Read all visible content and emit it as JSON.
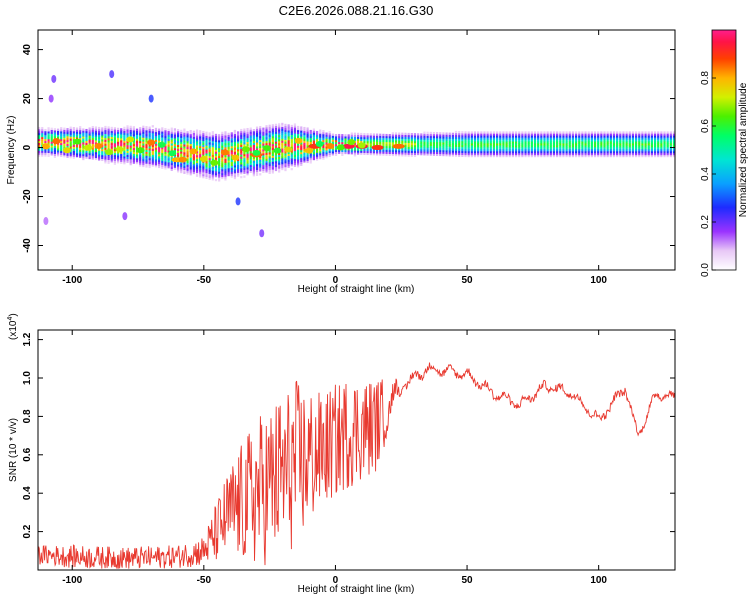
{
  "title": "C2E6.2026.088.21.16.G30",
  "chart_data": [
    {
      "type": "heatmap",
      "xlabel": "Height of straight line (km)",
      "ylabel": "Frequency (Hz)",
      "xlim": [
        -113,
        129
      ],
      "ylim": [
        -50,
        48
      ],
      "x_ticks": [
        -100,
        -50,
        0,
        50,
        100
      ],
      "y_ticks": [
        -40,
        -20,
        0,
        20,
        40
      ],
      "colorbar": {
        "label": "Normalized spectral amplitude",
        "range": [
          0.0,
          1.0
        ],
        "ticks": [
          0.0,
          0.2,
          0.4,
          0.6,
          0.8
        ]
      },
      "band": {
        "description_points": [
          {
            "x": -110,
            "center_hz": 2,
            "half_width_hz": 4
          },
          {
            "x": -70,
            "center_hz": 0,
            "half_width_hz": 6
          },
          {
            "x": -45,
            "center_hz": -4,
            "half_width_hz": 7
          },
          {
            "x": -20,
            "center_hz": 0,
            "half_width_hz": 7
          },
          {
            "x": 0,
            "center_hz": 1,
            "half_width_hz": 3
          },
          {
            "x": 50,
            "center_hz": 1,
            "half_width_hz": 4
          },
          {
            "x": 129,
            "center_hz": 1,
            "half_width_hz": 4
          }
        ],
        "peak_points": [
          {
            "x": 5,
            "y": 0.5,
            "amp": 0.95
          },
          {
            "x": 10,
            "y": 0.5,
            "amp": 0.95
          },
          {
            "x": 16,
            "y": 0.0,
            "amp": 0.9
          },
          {
            "x": 24,
            "y": 0.5,
            "amp": 0.85
          },
          {
            "x": -8,
            "y": 0.5,
            "amp": 0.9
          },
          {
            "x": -30,
            "y": -3,
            "amp": 0.85
          },
          {
            "x": -60,
            "y": -5,
            "amp": 0.8
          }
        ]
      },
      "scatter_points": [
        {
          "x": -107,
          "y": 28
        },
        {
          "x": -108,
          "y": 20
        },
        {
          "x": -80,
          "y": -28
        },
        {
          "x": -37,
          "y": -22
        },
        {
          "x": -28,
          "y": -35
        },
        {
          "x": -70,
          "y": 20
        },
        {
          "x": -110,
          "y": -30
        },
        {
          "x": -85,
          "y": 30
        }
      ]
    },
    {
      "type": "line",
      "xlabel": "Height of straight line (km)",
      "ylabel": "SNR (10 * v/v)",
      "y_multiplier": "(x10",
      "y_multiplier_exp": "4",
      "y_multiplier_close": ")",
      "xlim": [
        -113,
        129
      ],
      "ylim": [
        0.0,
        1.25
      ],
      "x_ticks": [
        -100,
        -50,
        0,
        50,
        100
      ],
      "y_ticks": [
        0.2,
        0.4,
        0.6,
        0.8,
        1.0,
        1.2
      ],
      "color": "#e8392f",
      "series": [
        {
          "name": "SNR",
          "envelope": [
            {
              "x": -113,
              "y": 0.08,
              "noise": 0.05
            },
            {
              "x": -100,
              "y": 0.07,
              "noise": 0.06
            },
            {
              "x": -80,
              "y": 0.06,
              "noise": 0.06
            },
            {
              "x": -60,
              "y": 0.07,
              "noise": 0.06
            },
            {
              "x": -50,
              "y": 0.1,
              "noise": 0.08
            },
            {
              "x": -40,
              "y": 0.3,
              "noise": 0.25
            },
            {
              "x": -30,
              "y": 0.4,
              "noise": 0.4
            },
            {
              "x": -15,
              "y": 0.55,
              "noise": 0.45
            },
            {
              "x": -5,
              "y": 0.62,
              "noise": 0.3
            },
            {
              "x": 5,
              "y": 0.72,
              "noise": 0.3
            },
            {
              "x": 15,
              "y": 0.75,
              "noise": 0.25
            },
            {
              "x": 25,
              "y": 0.95,
              "noise": 0.06
            },
            {
              "x": 35,
              "y": 1.05,
              "noise": 0.04
            },
            {
              "x": 50,
              "y": 1.02,
              "noise": 0.04
            },
            {
              "x": 60,
              "y": 0.92,
              "noise": 0.04
            },
            {
              "x": 70,
              "y": 0.86,
              "noise": 0.04
            },
            {
              "x": 80,
              "y": 0.96,
              "noise": 0.04
            },
            {
              "x": 90,
              "y": 0.92,
              "noise": 0.04
            },
            {
              "x": 100,
              "y": 0.78,
              "noise": 0.04
            },
            {
              "x": 110,
              "y": 0.95,
              "noise": 0.04
            },
            {
              "x": 115,
              "y": 0.7,
              "noise": 0.03
            },
            {
              "x": 122,
              "y": 0.92,
              "noise": 0.04
            },
            {
              "x": 129,
              "y": 0.9,
              "noise": 0.03
            }
          ]
        }
      ]
    }
  ]
}
